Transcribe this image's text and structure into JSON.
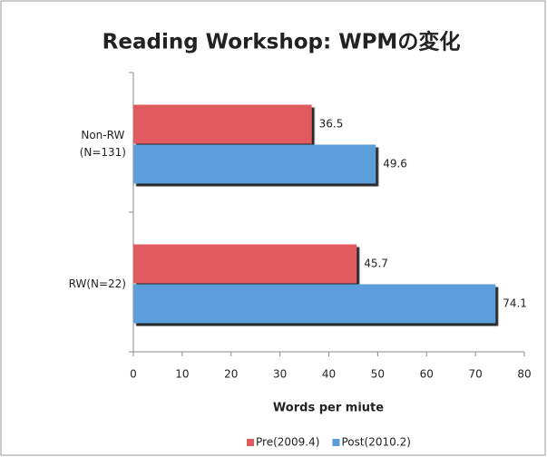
{
  "chart_data": {
    "type": "barh",
    "title": "Reading Workshop: WPMの変化",
    "xlabel": "Words per miute",
    "categories": [
      "Non-RW\n(N=131)",
      "RW(N=22)"
    ],
    "series": [
      {
        "name": "Pre(2009.4)",
        "color": "#e05a60",
        "values": [
          36.5,
          45.7
        ]
      },
      {
        "name": "Post(2010.2)",
        "color": "#5c9ddb",
        "values": [
          49.6,
          74.1
        ]
      }
    ],
    "xlim": [
      0,
      80
    ],
    "xticks": [
      0,
      10,
      20,
      30,
      40,
      50,
      60,
      70,
      80
    ],
    "legend": "bottom"
  }
}
